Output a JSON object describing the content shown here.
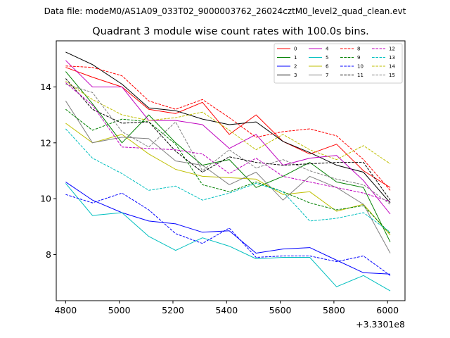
{
  "chart_data": {
    "type": "line",
    "suptitle": "Data file: modeM0/AS1A09_033T02_9000003762_26024cztM0_level2_quad_clean.evt",
    "title": "Quadrant 3 module wise count rates with 100.0s bins.",
    "xlabel": "",
    "ylabel": "",
    "x_offset_label": "+3.3301e8",
    "xlim": [
      4765,
      6065
    ],
    "ylim": [
      6.35,
      15.65
    ],
    "xticks": [
      4800,
      5000,
      5200,
      5400,
      5600,
      5800,
      6000
    ],
    "xtick_labels": [
      "4800",
      "5000",
      "5200",
      "5400",
      "5600",
      "5800",
      "6000"
    ],
    "yticks": [
      8,
      10,
      12,
      14
    ],
    "ytick_labels": [
      "8",
      "10",
      "12",
      "14"
    ],
    "grid": false,
    "legend_position": "top-right",
    "x": [
      4800,
      4900,
      5010,
      5110,
      5210,
      5310,
      5410,
      5510,
      5610,
      5710,
      5810,
      5910,
      6010
    ],
    "series": [
      {
        "name": "0",
        "color": "#ff0000",
        "style": "solid",
        "values": [
          14.7,
          14.35,
          14.0,
          13.2,
          13.05,
          13.45,
          12.3,
          13.0,
          12.05,
          11.6,
          11.95,
          11.0,
          10.4
        ]
      },
      {
        "name": "1",
        "color": "#008000",
        "style": "solid",
        "values": [
          14.55,
          13.4,
          12.0,
          13.0,
          12.0,
          11.2,
          11.4,
          10.4,
          10.8,
          11.3,
          10.6,
          10.4,
          8.45
        ]
      },
      {
        "name": "2",
        "color": "#0000ff",
        "style": "solid",
        "values": [
          10.6,
          9.95,
          9.5,
          9.2,
          9.1,
          8.8,
          8.85,
          8.05,
          8.2,
          8.25,
          7.8,
          7.35,
          7.3
        ]
      },
      {
        "name": "3",
        "color": "#000000",
        "style": "solid",
        "values": [
          15.25,
          14.8,
          14.1,
          13.25,
          13.15,
          12.85,
          12.65,
          12.75,
          12.05,
          11.65,
          11.2,
          10.95,
          9.85
        ]
      },
      {
        "name": "4",
        "color": "#bf00bf",
        "style": "solid",
        "values": [
          14.95,
          14.0,
          14.0,
          12.8,
          12.8,
          12.65,
          11.8,
          12.3,
          11.2,
          11.45,
          11.55,
          10.65,
          9.45
        ]
      },
      {
        "name": "5",
        "color": "#00bfbf",
        "style": "solid",
        "values": [
          10.55,
          9.4,
          9.5,
          8.65,
          8.15,
          8.6,
          8.3,
          7.85,
          7.9,
          7.9,
          6.85,
          7.25,
          6.7
        ]
      },
      {
        "name": "6",
        "color": "#bfbf00",
        "style": "solid",
        "values": [
          12.7,
          12.0,
          12.3,
          11.6,
          11.05,
          10.8,
          10.75,
          10.7,
          10.15,
          10.25,
          9.55,
          9.8,
          8.7
        ]
      },
      {
        "name": "7",
        "color": "#808080",
        "style": "solid",
        "values": [
          13.5,
          12.0,
          12.2,
          12.15,
          11.35,
          11.2,
          10.5,
          10.95,
          9.95,
          10.8,
          10.4,
          9.8,
          8.05
        ]
      },
      {
        "name": "8",
        "color": "#ff0000",
        "style": "dashed",
        "values": [
          14.75,
          14.7,
          14.4,
          13.5,
          13.2,
          13.55,
          12.9,
          12.2,
          12.4,
          12.5,
          12.25,
          11.4,
          10.3
        ]
      },
      {
        "name": "9",
        "color": "#008000",
        "style": "dashed",
        "values": [
          13.2,
          12.45,
          12.85,
          12.75,
          11.95,
          10.5,
          10.25,
          10.6,
          10.25,
          9.85,
          9.6,
          9.75,
          8.75
        ]
      },
      {
        "name": "10",
        "color": "#0000ff",
        "style": "dashed",
        "values": [
          10.15,
          9.85,
          10.2,
          9.6,
          8.75,
          8.4,
          8.95,
          7.9,
          7.95,
          7.95,
          7.75,
          7.95,
          7.25
        ]
      },
      {
        "name": "11",
        "color": "#000000",
        "style": "dashed",
        "values": [
          14.3,
          13.2,
          12.7,
          12.75,
          11.7,
          10.95,
          11.5,
          11.3,
          11.2,
          11.25,
          11.3,
          11.3,
          9.95
        ]
      },
      {
        "name": "12",
        "color": "#bf00bf",
        "style": "dashed",
        "values": [
          14.15,
          13.35,
          11.85,
          11.8,
          11.75,
          11.6,
          10.9,
          11.45,
          10.8,
          10.6,
          10.4,
          10.2,
          9.9
        ]
      },
      {
        "name": "13",
        "color": "#00bfbf",
        "style": "dashed",
        "values": [
          12.5,
          11.45,
          10.9,
          10.3,
          10.45,
          9.95,
          10.2,
          10.55,
          10.25,
          9.2,
          9.3,
          9.5,
          8.8
        ]
      },
      {
        "name": "14",
        "color": "#bfbf00",
        "style": "dashed",
        "values": [
          14.2,
          13.55,
          13.0,
          12.8,
          12.9,
          13.1,
          12.45,
          11.75,
          12.3,
          11.75,
          11.4,
          11.9,
          11.25
        ]
      },
      {
        "name": "15",
        "color": "#808080",
        "style": "dashed",
        "values": [
          14.1,
          13.8,
          12.4,
          11.85,
          12.75,
          11.0,
          11.75,
          11.1,
          11.4,
          11.0,
          10.7,
          10.5,
          9.8
        ]
      }
    ]
  }
}
